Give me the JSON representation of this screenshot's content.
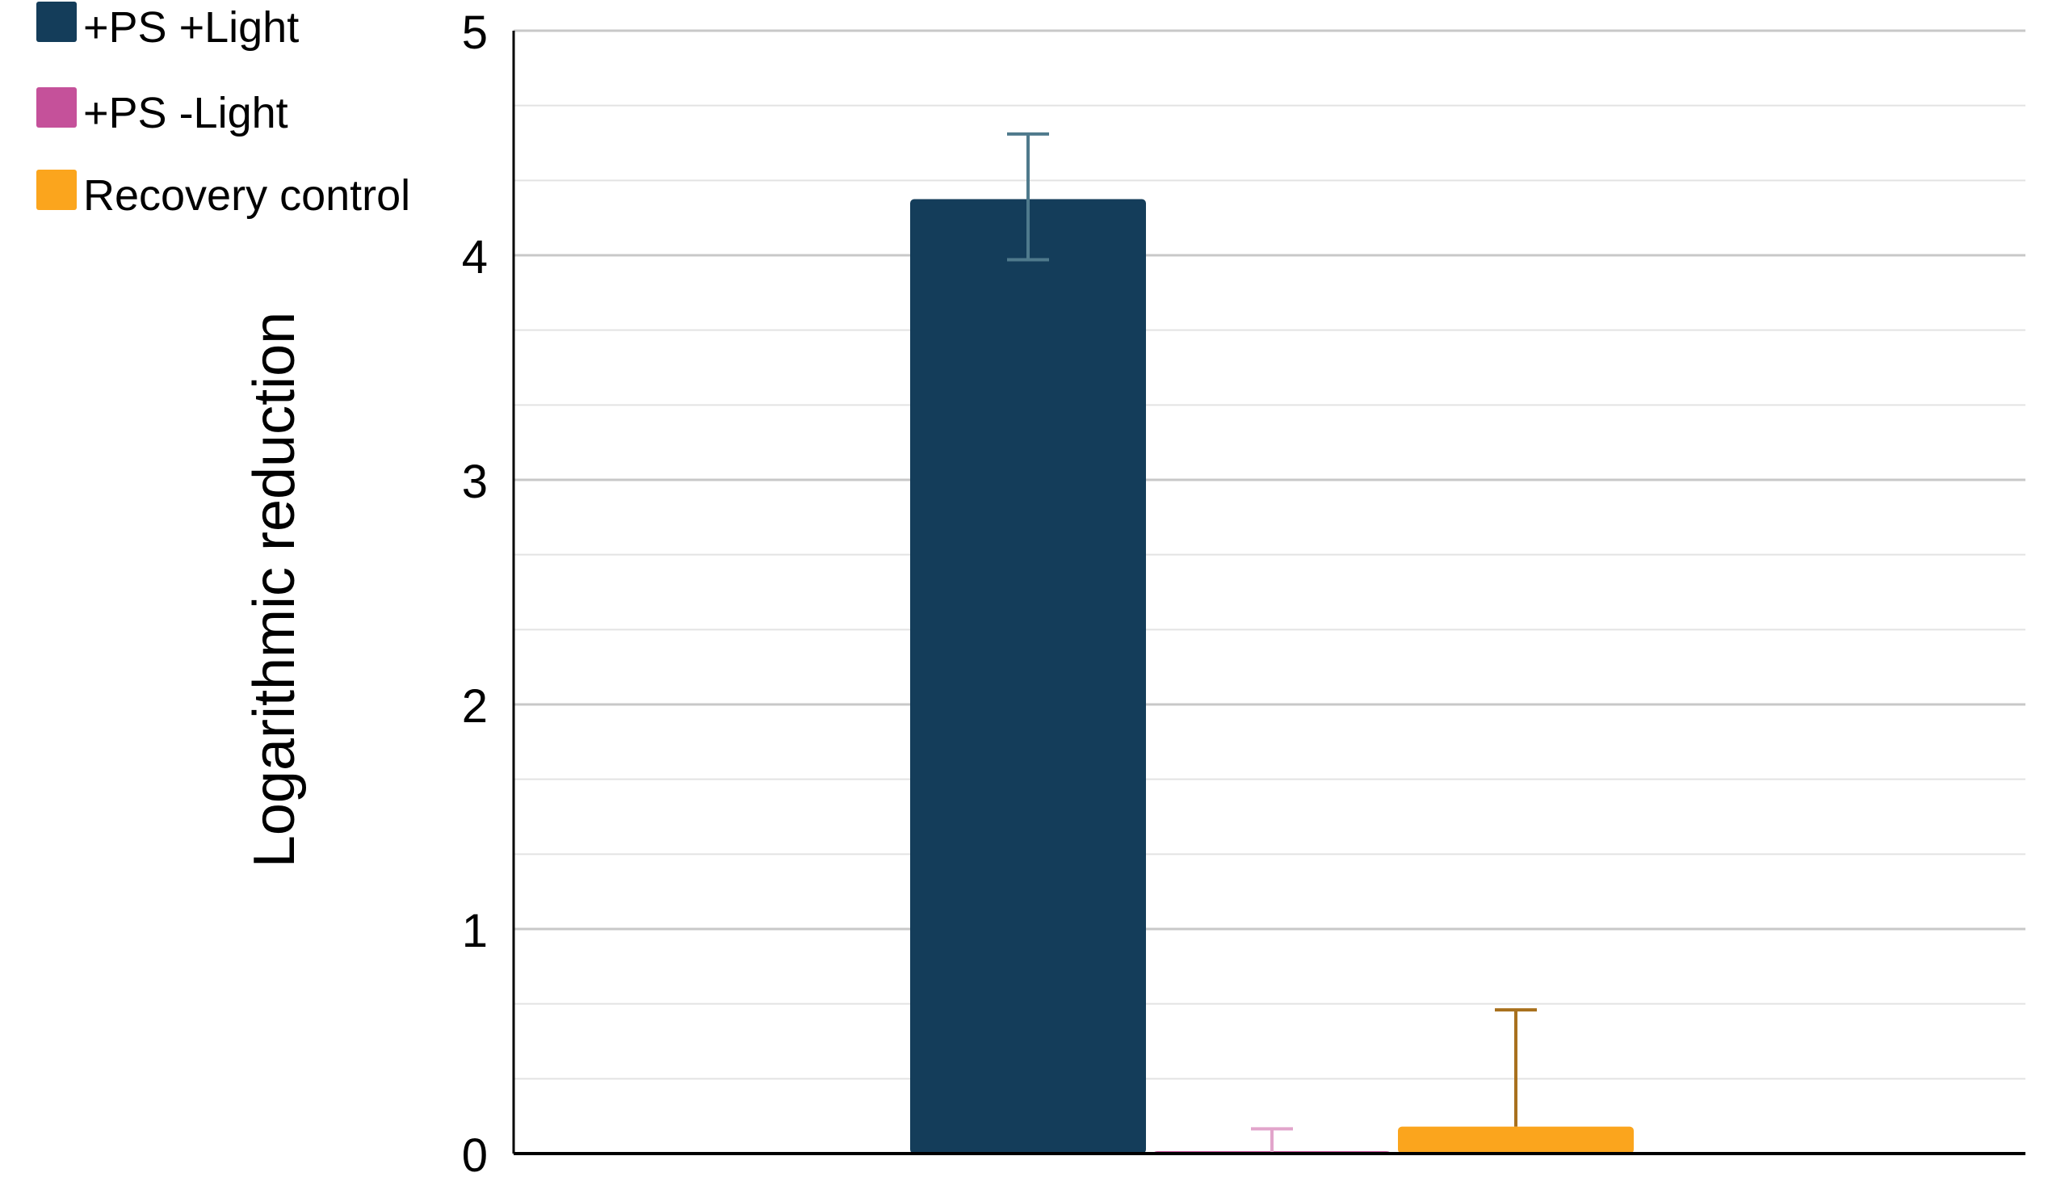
{
  "chart_data": {
    "type": "bar",
    "title": "",
    "xlabel": "",
    "ylabel": "Logarithmic reduction",
    "ylim": [
      0,
      5
    ],
    "yticks": [
      "0",
      "1",
      "2",
      "3",
      "4",
      "5"
    ],
    "grid": true,
    "minor_grid": true,
    "legend_placement": "top-left",
    "series": [
      {
        "name": "+PS +Light",
        "value": 4.25,
        "error_low": 0.27,
        "error_high": 0.29,
        "color": "#143D5A",
        "error_color": "#4F7A8C"
      },
      {
        "name": "+PS -Light",
        "value": 0.0,
        "error_low": 0.0,
        "error_high": 0.11,
        "color": "#C5519A",
        "error_color": "#E2A5CB"
      },
      {
        "name": "Recovery control",
        "value": 0.12,
        "error_low": 0.0,
        "error_high": 0.52,
        "color": "#FBA51D",
        "error_color": "#A8701D"
      }
    ]
  }
}
